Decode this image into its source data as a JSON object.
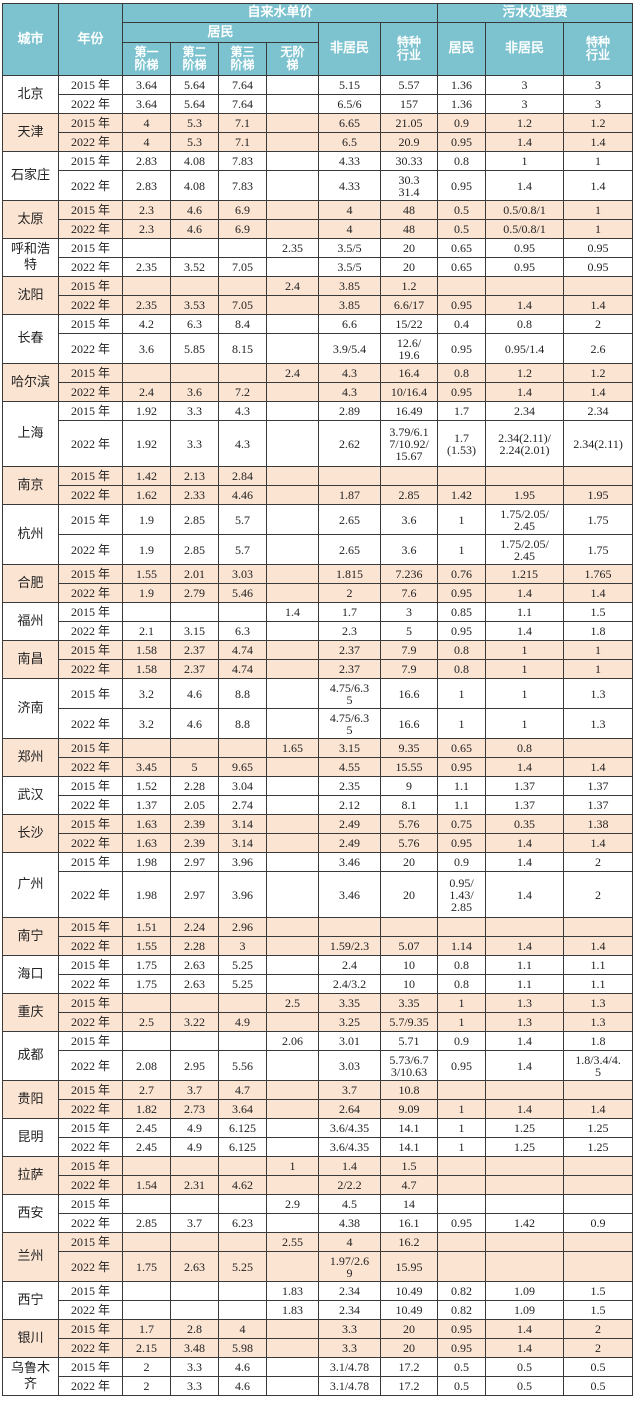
{
  "header": {
    "city": "城市",
    "year": "年份",
    "tap_water": "自来水单价",
    "sewage": "污水处理费",
    "residential": "居民",
    "tier1": "第一\n阶梯",
    "tier2": "第二\n阶梯",
    "tier3": "第三\n阶梯",
    "no_tier": "无阶\n梯",
    "non_residential": "非居民",
    "special": "特种\n行业",
    "sewage_residential": "居民",
    "sewage_non_residential": "非居民",
    "sewage_special": "特种\n行业"
  },
  "colors": {
    "header_bg": "#7cc3cf",
    "shaded_row": "#fce4d3"
  },
  "cities": [
    {
      "name": "北京",
      "rows": [
        [
          "2015 年",
          "3.64",
          "5.64",
          "7.64",
          "",
          "5.15",
          "5.57",
          "1.36",
          "3",
          "3"
        ],
        [
          "2022 年",
          "3.64",
          "5.64",
          "7.64",
          "",
          "6.5/6",
          "157",
          "1.36",
          "3",
          "3"
        ]
      ]
    },
    {
      "name": "天津",
      "rows": [
        [
          "2015 年",
          "4",
          "5.3",
          "7.1",
          "",
          "6.65",
          "21.05",
          "0.9",
          "1.2",
          "1.2"
        ],
        [
          "2022 年",
          "4",
          "5.3",
          "7.1",
          "",
          "6.5",
          "20.9",
          "0.95",
          "1.4",
          "1.4"
        ]
      ]
    },
    {
      "name": "石家庄",
      "rows": [
        [
          "2015 年",
          "2.83",
          "4.08",
          "7.83",
          "",
          "4.33",
          "30.33",
          "0.8",
          "1",
          "1"
        ],
        [
          "2022 年",
          "2.83",
          "4.08",
          "7.83",
          "",
          "4.33",
          "30.3\n31.4",
          "0.95",
          "1.4",
          "1.4"
        ]
      ]
    },
    {
      "name": "太原",
      "rows": [
        [
          "2015 年",
          "2.3",
          "4.6",
          "6.9",
          "",
          "4",
          "48",
          "0.5",
          "0.5/0.8/1",
          "1"
        ],
        [
          "2022 年",
          "2.3",
          "4.6",
          "6.9",
          "",
          "4",
          "48",
          "0.5",
          "0.5/0.8/1",
          "1"
        ]
      ]
    },
    {
      "name": "呼和浩\n特",
      "rows": [
        [
          "2015 年",
          "",
          "",
          "",
          "2.35",
          "3.5/5",
          "20",
          "0.65",
          "0.95",
          "0.95"
        ],
        [
          "2022 年",
          "2.35",
          "3.52",
          "7.05",
          "",
          "3.5/5",
          "20",
          "0.65",
          "0.95",
          "0.95"
        ]
      ]
    },
    {
      "name": "沈阳",
      "rows": [
        [
          "2015 年",
          "",
          "",
          "",
          "2.4",
          "3.85",
          "1.2",
          "",
          "",
          ""
        ],
        [
          "2022 年",
          "2.35",
          "3.53",
          "7.05",
          "",
          "3.85",
          "6.6/17",
          "0.95",
          "1.4",
          "1.4"
        ]
      ]
    },
    {
      "name": "长春",
      "rows": [
        [
          "2015 年",
          "4.2",
          "6.3",
          "8.4",
          "",
          "6.6",
          "15/22",
          "0.4",
          "0.8",
          "2"
        ],
        [
          "2022 年",
          "3.6",
          "5.85",
          "8.15",
          "",
          "3.9/5.4",
          "12.6/\n19.6",
          "0.95",
          "0.95/1.4",
          "2.6"
        ]
      ]
    },
    {
      "name": "哈尔滨",
      "rows": [
        [
          "2015 年",
          "",
          "",
          "",
          "2.4",
          "4.3",
          "16.4",
          "0.8",
          "1.2",
          "1.2"
        ],
        [
          "2022 年",
          "2.4",
          "3.6",
          "7.2",
          "",
          "4.3",
          "10/16.4",
          "0.95",
          "1.4",
          "1.4"
        ]
      ]
    },
    {
      "name": "上海",
      "rows": [
        [
          "2015 年",
          "1.92",
          "3.3",
          "4.3",
          "",
          "2.89",
          "16.49",
          "1.7",
          "2.34",
          "2.34"
        ],
        [
          "2022 年",
          "1.92",
          "3.3",
          "4.3",
          "",
          "2.62",
          "3.79/6.1\n7/10.92/\n15.67",
          "1.7\n(1.53)",
          "2.34(2.11)/\n2.24(2.01)",
          "2.34(2.11)"
        ]
      ]
    },
    {
      "name": "南京",
      "rows": [
        [
          "2015 年",
          "1.42",
          "2.13",
          "2.84",
          "",
          "",
          "",
          "",
          "",
          ""
        ],
        [
          "2022 年",
          "1.62",
          "2.33",
          "4.46",
          "",
          "1.87",
          "2.85",
          "1.42",
          "1.95",
          "1.95"
        ]
      ]
    },
    {
      "name": "杭州",
      "rows": [
        [
          "2015 年",
          "1.9",
          "2.85",
          "5.7",
          "",
          "2.65",
          "3.6",
          "1",
          "1.75/2.05/\n2.45",
          "1.75"
        ],
        [
          "2022 年",
          "1.9",
          "2.85",
          "5.7",
          "",
          "2.65",
          "3.6",
          "1",
          "1.75/2.05/\n2.45",
          "1.75"
        ]
      ]
    },
    {
      "name": "合肥",
      "rows": [
        [
          "2015 年",
          "1.55",
          "2.01",
          "3.03",
          "",
          "1.815",
          "7.236",
          "0.76",
          "1.215",
          "1.765"
        ],
        [
          "2022 年",
          "1.9",
          "2.79",
          "5.46",
          "",
          "2",
          "7.6",
          "0.95",
          "1.4",
          "1.4"
        ]
      ]
    },
    {
      "name": "福州",
      "rows": [
        [
          "2015 年",
          "",
          "",
          "",
          "1.4",
          "1.7",
          "3",
          "0.85",
          "1.1",
          "1.5"
        ],
        [
          "2022 年",
          "2.1",
          "3.15",
          "6.3",
          "",
          "2.3",
          "5",
          "0.95",
          "1.4",
          "1.8"
        ]
      ]
    },
    {
      "name": "南昌",
      "rows": [
        [
          "2015 年",
          "1.58",
          "2.37",
          "4.74",
          "",
          "2.37",
          "7.9",
          "0.8",
          "1",
          "1"
        ],
        [
          "2022 年",
          "1.58",
          "2.37",
          "4.74",
          "",
          "2.37",
          "7.9",
          "0.8",
          "1",
          "1"
        ]
      ]
    },
    {
      "name": "济南",
      "rows": [
        [
          "2015 年",
          "3.2",
          "4.6",
          "8.8",
          "",
          "4.75/6.3\n5",
          "16.6",
          "1",
          "1",
          "1.3"
        ],
        [
          "2022 年",
          "3.2",
          "4.6",
          "8.8",
          "",
          "4.75/6.3\n5",
          "16.6",
          "1",
          "1",
          "1.3"
        ]
      ]
    },
    {
      "name": "郑州",
      "rows": [
        [
          "2015 年",
          "",
          "",
          "",
          "1.65",
          "3.15",
          "9.35",
          "0.65",
          "0.8",
          ""
        ],
        [
          "2022 年",
          "3.45",
          "5",
          "9.65",
          "",
          "4.55",
          "15.55",
          "0.95",
          "1.4",
          "1.4"
        ]
      ]
    },
    {
      "name": "武汉",
      "rows": [
        [
          "2015 年",
          "1.52",
          "2.28",
          "3.04",
          "",
          "2.35",
          "9",
          "1.1",
          "1.37",
          "1.37"
        ],
        [
          "2022 年",
          "1.37",
          "2.05",
          "2.74",
          "",
          "2.12",
          "8.1",
          "1.1",
          "1.37",
          "1.37"
        ]
      ]
    },
    {
      "name": "长沙",
      "rows": [
        [
          "2015 年",
          "1.63",
          "2.39",
          "3.14",
          "",
          "2.49",
          "5.76",
          "0.75",
          "0.35",
          "1.38"
        ],
        [
          "2022 年",
          "1.63",
          "2.39",
          "3.14",
          "",
          "2.49",
          "5.76",
          "0.95",
          "1.4",
          "1.4"
        ]
      ]
    },
    {
      "name": "广州",
      "rows": [
        [
          "2015 年",
          "1.98",
          "2.97",
          "3.96",
          "",
          "3.46",
          "20",
          "0.9",
          "1.4",
          "2"
        ],
        [
          "2022 年",
          "1.98",
          "2.97",
          "3.96",
          "",
          "3.46",
          "20",
          "0.95/\n1.43/\n2.85",
          "1.4",
          "2"
        ]
      ]
    },
    {
      "name": "南宁",
      "rows": [
        [
          "2015 年",
          "1.51",
          "2.24",
          "2.96",
          "",
          "",
          "",
          "",
          "",
          ""
        ],
        [
          "2022 年",
          "1.55",
          "2.28",
          "3",
          "",
          "1.59/2.3",
          "5.07",
          "1.14",
          "1.4",
          "1.4"
        ]
      ]
    },
    {
      "name": "海口",
      "rows": [
        [
          "2015 年",
          "1.75",
          "2.63",
          "5.25",
          "",
          "2.4",
          "10",
          "0.8",
          "1.1",
          "1.1"
        ],
        [
          "2022 年",
          "1.75",
          "2.63",
          "5.25",
          "",
          "2.4/3.2",
          "10",
          "0.8",
          "1.1",
          "1.1"
        ]
      ]
    },
    {
      "name": "重庆",
      "rows": [
        [
          "2015 年",
          "",
          "",
          "",
          "2.5",
          "3.35",
          "3.35",
          "1",
          "1.3",
          "1.3"
        ],
        [
          "2022 年",
          "2.5",
          "3.22",
          "4.9",
          "",
          "3.25",
          "5.7/9.35",
          "1",
          "1.3",
          "1.3"
        ]
      ]
    },
    {
      "name": "成都",
      "rows": [
        [
          "2015 年",
          "",
          "",
          "",
          "2.06",
          "3.01",
          "5.71",
          "0.9",
          "1.4",
          "1.8"
        ],
        [
          "2022 年",
          "2.08",
          "2.95",
          "5.56",
          "",
          "3.03",
          "5.73/6.7\n3/10.63",
          "0.95",
          "1.4",
          "1.8/3.4/4.\n5"
        ]
      ]
    },
    {
      "name": "贵阳",
      "rows": [
        [
          "2015 年",
          "2.7",
          "3.7",
          "4.7",
          "",
          "3.7",
          "10.8",
          "",
          "",
          ""
        ],
        [
          "2022 年",
          "1.82",
          "2.73",
          "3.64",
          "",
          "2.64",
          "9.09",
          "1",
          "1.4",
          "1.4"
        ]
      ]
    },
    {
      "name": "昆明",
      "rows": [
        [
          "2015 年",
          "2.45",
          "4.9",
          "6.125",
          "",
          "3.6/4.35",
          "14.1",
          "1",
          "1.25",
          "1.25"
        ],
        [
          "2022 年",
          "2.45",
          "4.9",
          "6.125",
          "",
          "3.6/4.35",
          "14.1",
          "1",
          "1.25",
          "1.25"
        ]
      ]
    },
    {
      "name": "拉萨",
      "rows": [
        [
          "2015 年",
          "",
          "",
          "",
          "1",
          "1.4",
          "1.5",
          "",
          "",
          ""
        ],
        [
          "2022 年",
          "1.54",
          "2.31",
          "4.62",
          "",
          "2/2.2",
          "4.7",
          "",
          "",
          ""
        ]
      ]
    },
    {
      "name": "西安",
      "rows": [
        [
          "2015 年",
          "",
          "",
          "",
          "2.9",
          "4.5",
          "14",
          "",
          "",
          ""
        ],
        [
          "2022 年",
          "2.85",
          "3.7",
          "6.23",
          "",
          "4.38",
          "16.1",
          "0.95",
          "1.42",
          "0.9"
        ]
      ]
    },
    {
      "name": "兰州",
      "rows": [
        [
          "2015 年",
          "",
          "",
          "",
          "2.55",
          "4",
          "16.2",
          "",
          "",
          ""
        ],
        [
          "2022 年",
          "1.75",
          "2.63",
          "5.25",
          "",
          "1.97/2.6\n9",
          "15.95",
          "",
          "",
          ""
        ]
      ]
    },
    {
      "name": "西宁",
      "rows": [
        [
          "2015 年",
          "",
          "",
          "",
          "1.83",
          "2.34",
          "10.49",
          "0.82",
          "1.09",
          "1.5"
        ],
        [
          "2022 年",
          "",
          "",
          "",
          "1.83",
          "2.34",
          "10.49",
          "0.82",
          "1.09",
          "1.5"
        ]
      ]
    },
    {
      "name": "银川",
      "rows": [
        [
          "2015 年",
          "1.7",
          "2.8",
          "4",
          "",
          "3.3",
          "20",
          "0.95",
          "1.4",
          "2"
        ],
        [
          "2022 年",
          "2.15",
          "3.48",
          "5.98",
          "",
          "3.3",
          "20",
          "0.95",
          "1.4",
          "2"
        ]
      ]
    },
    {
      "name": "乌鲁木\n齐",
      "rows": [
        [
          "2015 年",
          "2",
          "3.3",
          "4.6",
          "",
          "3.1/4.78",
          "17.2",
          "0.5",
          "0.5",
          "0.5"
        ],
        [
          "2022 年",
          "2",
          "3.3",
          "4.6",
          "",
          "3.1/4.78",
          "17.2",
          "0.5",
          "0.5",
          "0.5"
        ]
      ]
    }
  ]
}
